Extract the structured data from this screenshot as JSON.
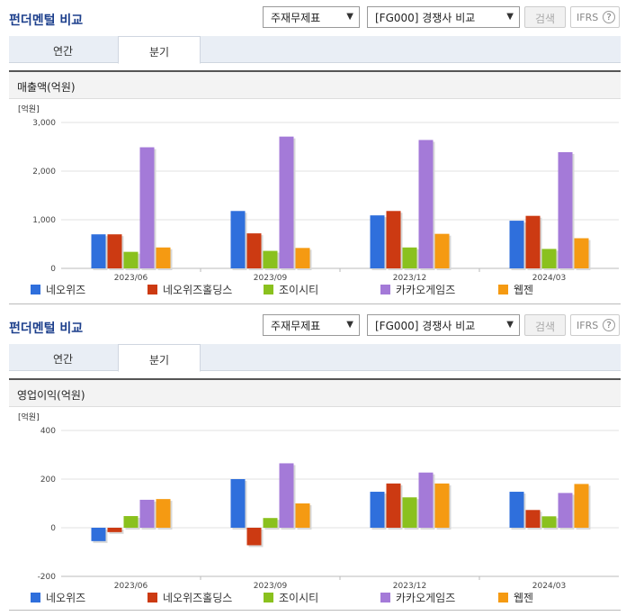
{
  "sections": [
    {
      "header": {
        "title": "펀더멘털 비교",
        "select_statement": "주재무제표",
        "select_compare": "[FG000] 경쟁사 비교",
        "search_button": "검색",
        "ifrs_label": "IFRS",
        "help_glyph": "?"
      },
      "tabs": [
        {
          "label": "연간"
        },
        {
          "label": "분기"
        }
      ],
      "active_tab": "분기"
    },
    {
      "header": {
        "title": "펀더멘털 비교",
        "select_statement": "주재무제표",
        "select_compare": "[FG000] 경쟁사 비교",
        "search_button": "검색",
        "ifrs_label": "IFRS",
        "help_glyph": "?"
      },
      "tabs": [
        {
          "label": "연간"
        },
        {
          "label": "분기"
        }
      ],
      "active_tab": "분기"
    }
  ],
  "chart_data": [
    {
      "type": "bar",
      "title": "매출액(억원)",
      "unit_label": "[억원]",
      "categories": [
        "2023/06",
        "2023/09",
        "2023/12",
        "2024/03"
      ],
      "ylim": [
        0,
        3000
      ],
      "yticks": [
        0,
        1000,
        2000,
        3000
      ],
      "ytick_labels": [
        "0",
        "1,000",
        "2,000",
        "3,000"
      ],
      "grid": true,
      "legend_position": "bottom",
      "series": [
        {
          "name": "네오위즈",
          "color": "#2f6fdc",
          "values": [
            700,
            1180,
            1090,
            980
          ]
        },
        {
          "name": "네오위즈홀딩스",
          "color": "#cc3a12",
          "values": [
            700,
            720,
            1180,
            1080
          ]
        },
        {
          "name": "조이시티",
          "color": "#8ac11e",
          "values": [
            340,
            360,
            430,
            400
          ]
        },
        {
          "name": "카카오게임즈",
          "color": "#a47ad8",
          "values": [
            2490,
            2710,
            2640,
            2390
          ]
        },
        {
          "name": "웹젠",
          "color": "#f59a12",
          "values": [
            430,
            420,
            710,
            620
          ]
        }
      ]
    },
    {
      "type": "bar",
      "title": "영업이익(억원)",
      "unit_label": "[억원]",
      "categories": [
        "2023/06",
        "2023/09",
        "2023/12",
        "2024/03"
      ],
      "ylim": [
        -200,
        400
      ],
      "yticks": [
        -200,
        0,
        200,
        400
      ],
      "ytick_labels": [
        "-200",
        "0",
        "200",
        "400"
      ],
      "grid": true,
      "legend_position": "bottom",
      "series": [
        {
          "name": "네오위즈",
          "color": "#2f6fdc",
          "values": [
            -55,
            200,
            148,
            148
          ]
        },
        {
          "name": "네오위즈홀딩스",
          "color": "#cc3a12",
          "values": [
            -18,
            -72,
            182,
            73
          ]
        },
        {
          "name": "조이시티",
          "color": "#8ac11e",
          "values": [
            48,
            40,
            125,
            47
          ]
        },
        {
          "name": "카카오게임즈",
          "color": "#a47ad8",
          "values": [
            115,
            265,
            227,
            143
          ]
        },
        {
          "name": "웹젠",
          "color": "#f59a12",
          "values": [
            118,
            100,
            182,
            180
          ]
        }
      ]
    }
  ]
}
